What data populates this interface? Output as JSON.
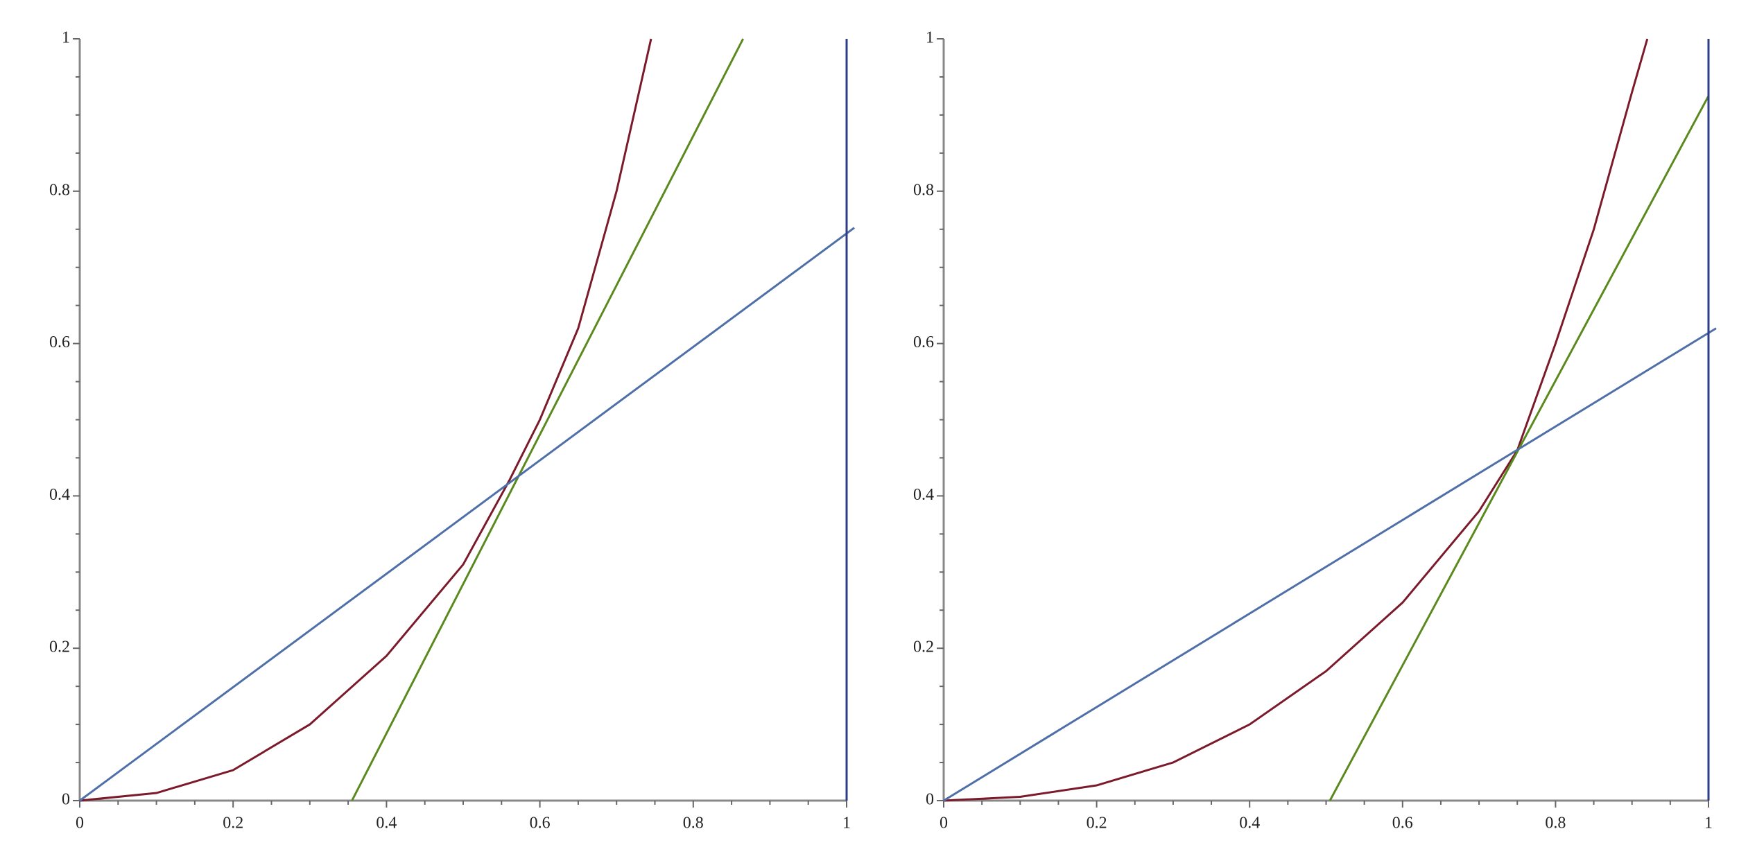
{
  "chart_data": [
    {
      "type": "line",
      "xlim": [
        0,
        1
      ],
      "ylim": [
        0,
        1
      ],
      "xticks": [
        0,
        0.2,
        0.4,
        0.6,
        0.8,
        1
      ],
      "yticks": [
        0,
        0.2,
        0.4,
        0.6,
        0.8,
        1
      ],
      "series": [
        {
          "color": "#7b1a2a",
          "x": [
            0,
            0.1,
            0.2,
            0.3,
            0.4,
            0.5,
            0.56,
            0.6,
            0.65,
            0.7,
            0.745
          ],
          "values": [
            0,
            0.01,
            0.04,
            0.1,
            0.19,
            0.31,
            0.42,
            0.5,
            0.62,
            0.8,
            1
          ]
        },
        {
          "color": "#5a8a1e",
          "x": [
            0.355,
            0.865
          ],
          "values": [
            0,
            1
          ]
        },
        {
          "color": "#4f6fa8",
          "x": [
            0,
            1.01
          ],
          "values": [
            0,
            0.752
          ]
        },
        {
          "color": "#2c3d8a",
          "x": [
            1,
            1
          ],
          "values": [
            0,
            1
          ]
        }
      ]
    },
    {
      "type": "line",
      "xlim": [
        0,
        1
      ],
      "ylim": [
        0,
        1
      ],
      "xticks": [
        0,
        0.2,
        0.4,
        0.6,
        0.8,
        1
      ],
      "yticks": [
        0,
        0.2,
        0.4,
        0.6,
        0.8,
        1
      ],
      "series": [
        {
          "color": "#7b1a2a",
          "x": [
            0,
            0.1,
            0.2,
            0.3,
            0.4,
            0.5,
            0.6,
            0.7,
            0.75,
            0.8,
            0.85,
            0.9,
            0.92
          ],
          "values": [
            0,
            0.005,
            0.02,
            0.05,
            0.1,
            0.17,
            0.26,
            0.38,
            0.46,
            0.6,
            0.75,
            0.93,
            1
          ]
        },
        {
          "color": "#5a8a1e",
          "x": [
            0.505,
            1
          ],
          "values": [
            0,
            0.925
          ]
        },
        {
          "color": "#4f6fa8",
          "x": [
            0,
            1.01
          ],
          "values": [
            0,
            0.62
          ]
        },
        {
          "color": "#2c3d8a",
          "x": [
            1,
            1
          ],
          "values": [
            0,
            1
          ]
        }
      ]
    }
  ]
}
